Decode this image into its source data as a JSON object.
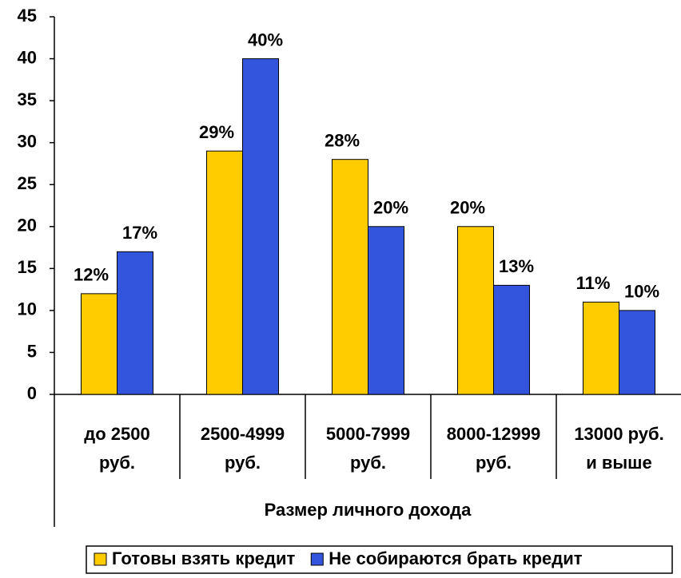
{
  "chart_data": {
    "type": "bar",
    "x_label": "Размер личного дохода",
    "categories": [
      "до 2500\nруб.",
      "2500-4999\nруб.",
      "5000-7999\nруб.",
      "8000-12999\nруб.",
      "13000 руб.\nи выше"
    ],
    "series": [
      {
        "name": "Готовы взять кредит",
        "color": "#ffcc00",
        "values": [
          12,
          29,
          28,
          20,
          11
        ],
        "value_labels": [
          "12%",
          "29%",
          "28%",
          "20%",
          "11%"
        ]
      },
      {
        "name": "Не собираются брать кредит",
        "color": "#3355dd",
        "values": [
          17,
          40,
          20,
          13,
          10
        ],
        "value_labels": [
          "17%",
          "40%",
          "20%",
          "13%",
          "10%"
        ]
      }
    ],
    "ylim": [
      0,
      45
    ],
    "yticks": [
      0,
      5,
      10,
      15,
      20,
      25,
      30,
      35,
      40,
      45
    ],
    "legend": "bottom"
  }
}
